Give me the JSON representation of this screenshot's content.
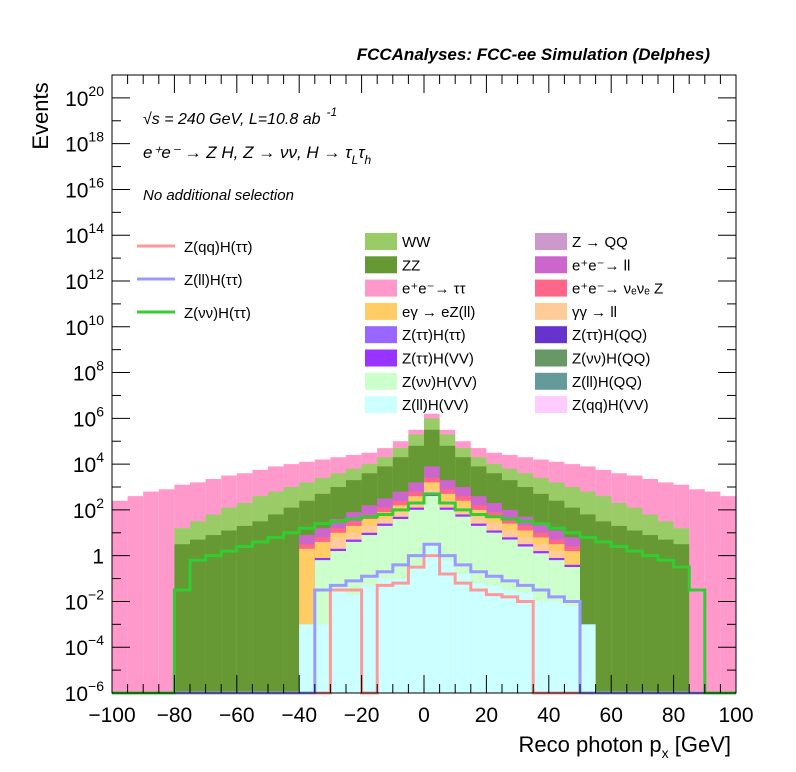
{
  "chart_data": {
    "type": "area",
    "title": "FCCAnalyses: FCC-ee Simulation (Delphes)",
    "xlabel": "Reco photon p",
    "xlabel_sub": "x",
    "xlabel_unit": " [GeV]",
    "ylabel": "Events",
    "xlim": [
      -100,
      100
    ],
    "ylim_log10": [
      -6,
      21
    ],
    "y_scale": "log",
    "x_ticks": [
      -100,
      -80,
      -60,
      -40,
      -20,
      0,
      20,
      40,
      60,
      80,
      100
    ],
    "x_tick_labels": [
      "−100",
      "−80",
      "−60",
      "−40",
      "−20",
      "0",
      "20",
      "40",
      "60",
      "80",
      "100"
    ],
    "y_ticks": [
      {
        "exp": 20,
        "base": "10",
        "sup": "20"
      },
      {
        "exp": 18,
        "base": "10",
        "sup": "18"
      },
      {
        "exp": 16,
        "base": "10",
        "sup": "16"
      },
      {
        "exp": 14,
        "base": "10",
        "sup": "14"
      },
      {
        "exp": 12,
        "base": "10",
        "sup": "12"
      },
      {
        "exp": 10,
        "base": "10",
        "sup": "10"
      },
      {
        "exp": 8,
        "base": "10",
        "sup": "8"
      },
      {
        "exp": 6,
        "base": "10",
        "sup": "6"
      },
      {
        "exp": 4,
        "base": "10",
        "sup": "4"
      },
      {
        "exp": 2,
        "base": "10",
        "sup": "2"
      },
      {
        "exp": 0,
        "base": "1",
        "sup": ""
      },
      {
        "exp": -2,
        "base": "10",
        "sup": "−2"
      },
      {
        "exp": -4,
        "base": "10",
        "sup": "−4"
      },
      {
        "exp": -6,
        "base": "10",
        "sup": "−6"
      }
    ],
    "annotations": {
      "energy": "√s = 240 GeV, L=10.8 ab",
      "energy_sup": "-1",
      "process": "e⁺e⁻ → Z H, Z → νν, H → τ",
      "process_sub1": "L",
      "process_mid": "τ",
      "process_sub2": "h",
      "selection": "No additional selection"
    },
    "x_edges": [
      -100,
      -95,
      -90,
      -85,
      -80,
      -75,
      -70,
      -65,
      -60,
      -55,
      -50,
      -45,
      -40,
      -35,
      -30,
      -25,
      -20,
      -15,
      -10,
      -5,
      0,
      5,
      10,
      15,
      20,
      25,
      30,
      35,
      40,
      45,
      50,
      55,
      60,
      65,
      70,
      75,
      80,
      85,
      90,
      95,
      100
    ],
    "stack_layers": [
      {
        "name": "Z(ll)H(VV)",
        "color": "#ccffff",
        "cum_log10": [
          -9,
          -9,
          -9,
          -9,
          -9,
          -9,
          -9,
          -9,
          -9,
          -9,
          -9,
          -9,
          -3,
          -3,
          -1.5,
          -1.7,
          -1.3,
          -1,
          -1,
          -0.5,
          0.5,
          -0.2,
          -0.8,
          -1.2,
          -1.3,
          -1.5,
          -1.6,
          -2,
          -2,
          -2.2,
          -3,
          -9,
          -9,
          -9,
          -9,
          -9,
          -9,
          -9,
          -9,
          -9
        ]
      },
      {
        "name": "Z(νν)H(VV)",
        "color": "#ccffcc",
        "cum_log10": [
          -9,
          -9,
          -9,
          -9,
          -9,
          -9,
          -9,
          -9,
          -9,
          -9,
          -9,
          -9,
          -9,
          -0.2,
          0.2,
          0.6,
          0.9,
          1.3,
          1.6,
          2,
          2.6,
          2,
          1.7,
          1.3,
          1,
          0.7,
          0.4,
          0.1,
          -0.2,
          -0.5,
          -9,
          -9,
          -9,
          -9,
          -9,
          -9,
          -9,
          -9,
          -9,
          -9
        ]
      },
      {
        "name": "Z(qq)H(VV)",
        "color": "#ffccff",
        "cum_log10": [
          -9,
          -9,
          -9,
          -9,
          -9,
          -9,
          -9,
          -9,
          -9,
          -9,
          -9,
          -9,
          -9,
          -0.2,
          0.2,
          0.6,
          0.9,
          1.3,
          1.6,
          2,
          2.6,
          2,
          1.7,
          1.3,
          1,
          0.7,
          0.4,
          0.1,
          -0.2,
          -0.5,
          -9,
          -9,
          -9,
          -9,
          -9,
          -9,
          -9,
          -9,
          -9,
          -9
        ]
      },
      {
        "name": "Z(ττ)H(VV)",
        "color": "#9933ff",
        "cum_log10": [
          -9,
          -9,
          -9,
          -9,
          -9,
          -9,
          -9,
          -9,
          -9,
          -9,
          -9,
          -9,
          -9,
          -0.1,
          0.3,
          0.7,
          1,
          1.4,
          1.7,
          2.1,
          2.7,
          2.1,
          1.8,
          1.4,
          1.1,
          0.8,
          0.5,
          0.2,
          -0.1,
          -0.4,
          -9,
          -9,
          -9,
          -9,
          -9,
          -9,
          -9,
          -9,
          -9,
          -9
        ]
      },
      {
        "name": "γγ → ll",
        "color": "#ffcc99",
        "cum_log10": [
          -9,
          -9,
          -9,
          -9,
          -9,
          -9,
          -9,
          -9,
          -9,
          -9,
          -9,
          -9,
          -9,
          -9,
          0.8,
          1,
          1.3,
          1.6,
          1.9,
          2.3,
          2.9,
          2.4,
          2.1,
          1.7,
          1.4,
          1.1,
          0.8,
          0.5,
          0.2,
          -9,
          -9,
          -9,
          -9,
          -9,
          -9,
          -9,
          -9,
          -9,
          -9,
          -9
        ]
      },
      {
        "name": "eγ → eZ(ll)",
        "color": "#ffcc66",
        "cum_log10": [
          -9,
          -9,
          -9,
          -9,
          -9,
          -9,
          -9,
          -9,
          -9,
          -9,
          -9,
          -9,
          0.3,
          0.6,
          1,
          1.3,
          1.6,
          1.9,
          2.2,
          2.6,
          3.2,
          2.7,
          2.4,
          2,
          1.7,
          1.4,
          1.1,
          0.8,
          0.5,
          0.2,
          -9,
          -9,
          -9,
          -9,
          -9,
          -9,
          -9,
          -9,
          -9,
          -9
        ]
      },
      {
        "name": "e⁺e⁻→ νₑνₑ Z",
        "color": "#ff6688",
        "cum_log10": [
          -9,
          -9,
          -9,
          -9,
          -9,
          -9,
          -9,
          -9,
          -9,
          -9,
          -9,
          -9,
          0.5,
          0.8,
          1.2,
          1.5,
          1.8,
          2.1,
          2.4,
          2.8,
          3.4,
          2.9,
          2.6,
          2.2,
          1.9,
          1.6,
          1.3,
          1,
          0.7,
          0.4,
          -9,
          -9,
          -9,
          -9,
          -9,
          -9,
          -9,
          -9,
          -9,
          -9
        ]
      },
      {
        "name": "e⁺e⁻→ ll",
        "color": "#cc66cc",
        "cum_log10": [
          -9,
          -9,
          -9,
          -9,
          -9,
          -9,
          -9,
          -9,
          -9,
          -9,
          -9,
          -9,
          0.9,
          1.2,
          1.6,
          1.9,
          2.2,
          2.5,
          2.8,
          3.2,
          3.9,
          3.3,
          3,
          2.6,
          2.3,
          2,
          1.7,
          1.4,
          1.1,
          0.8,
          -9,
          -9,
          -9,
          -9,
          -9,
          -9,
          -9,
          -9,
          -9,
          -9
        ]
      },
      {
        "name": "ZZ",
        "color": "#669933",
        "cum_log10": [
          -9,
          -9,
          -9,
          -9,
          0.5,
          0.7,
          0.9,
          1.1,
          1.3,
          1.5,
          1.8,
          2.1,
          2.4,
          2.7,
          3,
          3.3,
          3.6,
          3.9,
          4.3,
          4.8,
          5.5,
          4.8,
          4.3,
          3.9,
          3.6,
          3.3,
          3,
          2.7,
          2.4,
          2.1,
          1.8,
          1.5,
          1.3,
          1.1,
          0.9,
          0.7,
          0.5,
          -9,
          -9,
          -9
        ]
      },
      {
        "name": "WW",
        "color": "#99cc66",
        "cum_log10": [
          -9,
          -9,
          -9,
          -9,
          1.2,
          1.5,
          1.8,
          2.1,
          2.3,
          2.6,
          2.8,
          3,
          3.2,
          3.4,
          3.6,
          3.8,
          4,
          4.3,
          4.7,
          5.3,
          6,
          5.3,
          4.7,
          4.3,
          4,
          3.8,
          3.6,
          3.4,
          3.2,
          3,
          2.8,
          2.6,
          2.3,
          2.1,
          1.8,
          1.5,
          1.2,
          -9,
          -9,
          -9
        ]
      },
      {
        "name": "e⁺e⁻→ ττ",
        "color": "#ff99cc",
        "cum_log10": [
          2.4,
          2.6,
          2.8,
          2.9,
          3.1,
          3.2,
          3.35,
          3.5,
          3.6,
          3.75,
          3.9,
          4,
          4.1,
          4.2,
          4.3,
          4.4,
          4.5,
          4.7,
          5,
          5.5,
          6.2,
          5.5,
          5,
          4.7,
          4.5,
          4.4,
          4.3,
          4.2,
          4.1,
          4,
          3.9,
          3.75,
          3.6,
          3.5,
          3.35,
          3.2,
          3.1,
          2.9,
          2.8,
          2.6
        ]
      }
    ],
    "overlay_lines": [
      {
        "name": "Z(qq)H(ττ)",
        "color": "#ff9999",
        "log10": [
          -9,
          -9,
          -9,
          -9,
          -9,
          -9,
          -9,
          -9,
          -9,
          -9,
          -9,
          -9,
          -9,
          -9,
          -1.5,
          -1.5,
          -9,
          -1.3,
          -1.2,
          -0.5,
          0,
          -0.8,
          -1.2,
          -1.5,
          -1.7,
          -1.8,
          -2,
          -9,
          -9,
          -9,
          -9,
          -9,
          -9,
          -9,
          -9,
          -9,
          -9,
          -9,
          -9,
          -9
        ]
      },
      {
        "name": "Z(ll)H(ττ)",
        "color": "#9999ff",
        "log10": [
          -9,
          -9,
          -9,
          -9,
          -9,
          -9,
          -9,
          -9,
          -9,
          -9,
          -9,
          -9,
          -9,
          -1.5,
          -1.3,
          -1.1,
          -0.9,
          -0.7,
          -0.4,
          0,
          0.5,
          0,
          -0.4,
          -0.7,
          -0.9,
          -1.1,
          -1.3,
          -1.5,
          -1.8,
          -2,
          -9,
          -9,
          -9,
          -9,
          -9,
          -9,
          -9,
          -9,
          -9,
          -9
        ]
      },
      {
        "name": "Z(νν)H(ττ)",
        "color": "#33cc33",
        "log10": [
          -9,
          -9,
          -9,
          -9,
          -1.5,
          -0.2,
          0,
          0.2,
          0.4,
          0.6,
          0.8,
          1,
          1.2,
          1.4,
          1.5,
          1.6,
          1.7,
          1.8,
          2,
          2.3,
          2.7,
          2.3,
          2,
          1.8,
          1.7,
          1.6,
          1.5,
          1.4,
          1.2,
          1,
          0.8,
          0.6,
          0.4,
          0.2,
          0,
          -0.2,
          -0.5,
          -1.5,
          -9,
          -9
        ]
      }
    ],
    "legend_lines": [
      {
        "label": "Z(qq)H(ττ)",
        "color": "#ff9999"
      },
      {
        "label": "Z(ll)H(ττ)",
        "color": "#9999ff"
      },
      {
        "label": "Z(νν)H(ττ)",
        "color": "#33cc33"
      }
    ],
    "legend_fills": [
      {
        "label": "WW",
        "color": "#99cc66"
      },
      {
        "label": "Z → QQ",
        "color": "#cc99cc"
      },
      {
        "label": "ZZ",
        "color": "#669933"
      },
      {
        "label": "e⁺e⁻→ ll",
        "color": "#cc66cc"
      },
      {
        "label": "e⁺e⁻→ ττ",
        "color": "#ff99cc"
      },
      {
        "label": "e⁺e⁻→ νₑνₑ Z",
        "color": "#ff6688"
      },
      {
        "label": "eγ → eZ(ll)",
        "color": "#ffcc66"
      },
      {
        "label": "γγ → ll",
        "color": "#ffcc99"
      },
      {
        "label": "Z(ττ)H(ττ)",
        "color": "#9966ff"
      },
      {
        "label": "Z(ττ)H(QQ)",
        "color": "#6633cc"
      },
      {
        "label": "Z(ττ)H(VV)",
        "color": "#9933ff"
      },
      {
        "label": "Z(νν)H(QQ)",
        "color": "#669966"
      },
      {
        "label": "Z(νν)H(VV)",
        "color": "#ccffcc"
      },
      {
        "label": "Z(ll)H(QQ)",
        "color": "#669999"
      },
      {
        "label": "Z(ll)H(VV)",
        "color": "#ccffff"
      },
      {
        "label": "Z(qq)H(VV)",
        "color": "#ffccff"
      }
    ]
  }
}
